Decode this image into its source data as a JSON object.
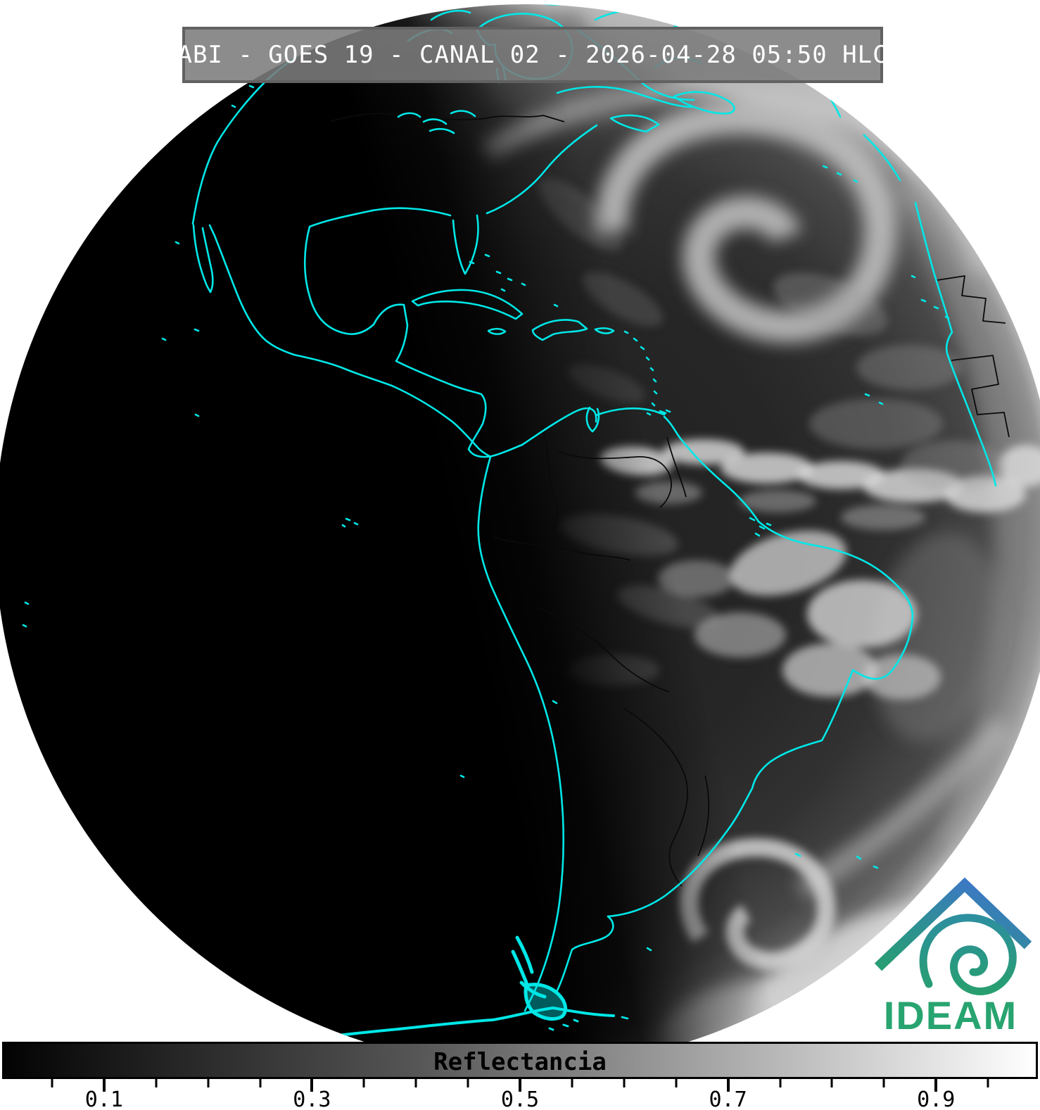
{
  "header": {
    "title": "ABI - GOES 19 - CANAL 02 - 2026-04-28 05:50 HLC",
    "instrument": "ABI",
    "satellite": "GOES 19",
    "channel": "CANAL 02",
    "datetime": "2026-04-28 05:50",
    "time_zone": "HLC"
  },
  "colorbar": {
    "label": "Reflectancia",
    "min": 0,
    "max": 1,
    "minor_tick_step": 0.05,
    "major_ticks": [
      0.1,
      0.3,
      0.5,
      0.7,
      0.9
    ],
    "tick_labels": [
      "0.1",
      "0.3",
      "0.5",
      "0.7",
      "0.9"
    ],
    "gradient_start": "#000000",
    "gradient_end": "#ffffff"
  },
  "logo": {
    "text": "IDEAM",
    "color_top": "#3c78c4",
    "color_bottom": "#27a06b",
    "text_color": "#28a470"
  },
  "map": {
    "description": "GOES-19 ABI channel 02 full-disk visible satellite image: night over the eastern Pacific, daylight over the Atlantic, Americas coastlines highlighted",
    "coastline_color": "#00e7e7",
    "border_color": "#0a0a0a",
    "night_color": "#000000",
    "background_color": "#ffffff"
  }
}
